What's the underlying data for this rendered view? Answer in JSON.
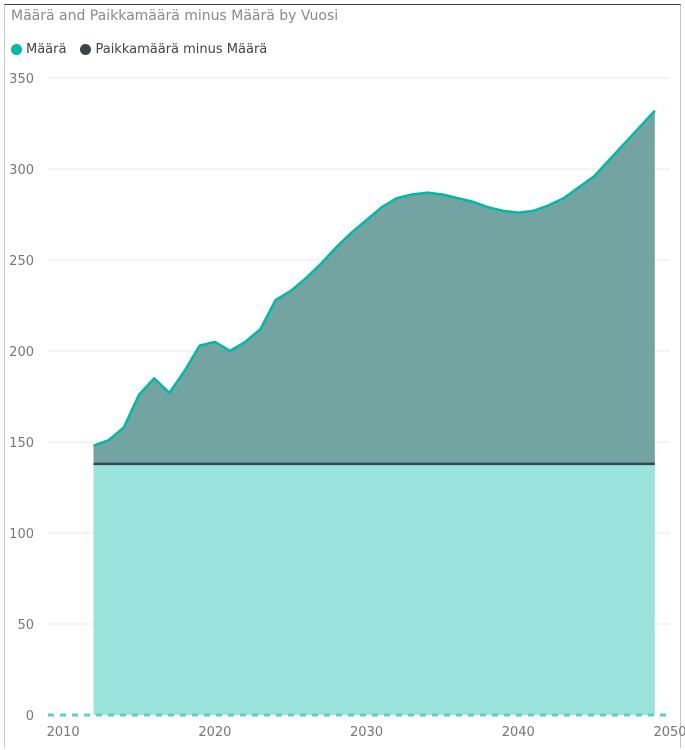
{
  "chart_data": {
    "type": "area",
    "title": "Määrä and Paikkamäärä minus Määrä by Vuosi",
    "xlabel": "",
    "ylabel": "",
    "xlim": [
      2009,
      2050
    ],
    "ylim": [
      0,
      350
    ],
    "x_ticks": [
      "2010",
      "2020",
      "2030",
      "2040",
      "2050"
    ],
    "y_ticks": [
      "0",
      "50",
      "100",
      "150",
      "200",
      "250",
      "300",
      "350"
    ],
    "grid": true,
    "legend": "top-left",
    "colors": {
      "maara": "#01B8AA",
      "maara_fill": "#9AE3DD",
      "minus": "#374649",
      "minus_fill": "#73A4A2"
    },
    "series": [
      {
        "name": "Määrä",
        "points": [
          [
            2012,
            138
          ],
          [
            2049,
            138
          ]
        ]
      },
      {
        "name": "Paikkamäärä minus Määrä",
        "points": [
          [
            2012,
            148
          ],
          [
            2013,
            151
          ],
          [
            2014,
            158
          ],
          [
            2015,
            176
          ],
          [
            2016,
            185
          ],
          [
            2017,
            177
          ],
          [
            2018,
            189
          ],
          [
            2019,
            203
          ],
          [
            2020,
            205
          ],
          [
            2021,
            200
          ],
          [
            2022,
            205
          ],
          [
            2023,
            212
          ],
          [
            2024,
            228
          ],
          [
            2025,
            233
          ],
          [
            2026,
            240
          ],
          [
            2027,
            248
          ],
          [
            2028,
            257
          ],
          [
            2029,
            265
          ],
          [
            2030,
            272
          ],
          [
            2031,
            279
          ],
          [
            2032,
            284
          ],
          [
            2033,
            286
          ],
          [
            2034,
            287
          ],
          [
            2035,
            286
          ],
          [
            2036,
            284
          ],
          [
            2037,
            282
          ],
          [
            2038,
            279
          ],
          [
            2039,
            277
          ],
          [
            2040,
            276
          ],
          [
            2041,
            277
          ],
          [
            2042,
            280
          ],
          [
            2043,
            284
          ],
          [
            2044,
            290
          ],
          [
            2045,
            296
          ],
          [
            2046,
            305
          ],
          [
            2047,
            314
          ],
          [
            2048,
            323
          ],
          [
            2049,
            332
          ]
        ]
      }
    ]
  }
}
